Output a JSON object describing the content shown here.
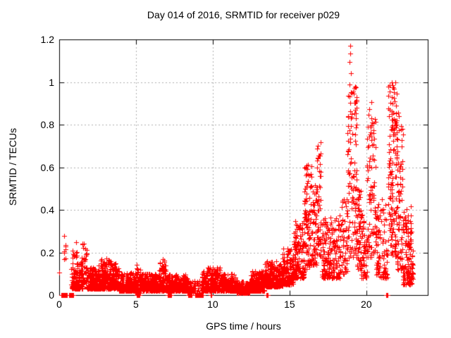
{
  "figure": {
    "title": "Day 014 of 2016, SRMTID for receiver p029",
    "xlabel": "GPS time / hours",
    "ylabel": "SRMTID / TECUs"
  },
  "chart_data": {
    "type": "scatter",
    "title": "Day 014 of 2016, SRMTID for receiver p029",
    "xlabel": "GPS time / hours",
    "ylabel": "SRMTID / TECUs",
    "xlim": [
      0,
      24
    ],
    "ylim": [
      0,
      1.2
    ],
    "xticks": {
      "values": [
        0,
        5,
        10,
        15,
        20
      ],
      "labels": [
        "0",
        "5",
        "10",
        "15",
        "20"
      ]
    },
    "yticks": {
      "values": [
        0,
        0.2,
        0.4,
        0.6,
        0.8,
        1.0,
        1.2
      ],
      "labels": [
        "0",
        "0.2",
        "0.4",
        "0.6",
        "0.8",
        "1",
        "1.2"
      ]
    },
    "grid": true,
    "grid_x": [
      5,
      10,
      15,
      20
    ],
    "grid_y": [
      0.2,
      0.4,
      0.6,
      0.8,
      1.0
    ],
    "legend": false,
    "colors": {
      "marker": "#ff0000",
      "grid": "#b0b0b0",
      "border": "#000000",
      "text": "#000000",
      "background": "#ffffff"
    },
    "series": [
      {
        "name": "SRMTID",
        "marker": "plus",
        "marker_size": 7
      }
    ],
    "seed": 20160114,
    "max_value": 1.17,
    "max_value_time": 18.93,
    "bands": [
      {
        "x0": 0.28,
        "x1": 0.48,
        "ymin": 0.16,
        "ymax": 0.28,
        "n": 8,
        "p": 1.0
      },
      {
        "x0": 0.82,
        "x1": 1.25,
        "ymin": 0.13,
        "ymax": 0.25,
        "n": 12,
        "p": 1.0
      },
      {
        "x0": 0.78,
        "x1": 1.55,
        "ymin": 0.03,
        "ymax": 0.15,
        "n": 130,
        "p": 2.0
      },
      {
        "x0": 1.42,
        "x1": 1.8,
        "ymin": 0.05,
        "ymax": 0.245,
        "n": 45,
        "p": 1.6
      },
      {
        "x0": 1.8,
        "x1": 2.6,
        "ymin": 0.03,
        "ymax": 0.13,
        "n": 170,
        "p": 2.0
      },
      {
        "x0": 2.58,
        "x1": 3.35,
        "ymin": 0.03,
        "ymax": 0.175,
        "n": 170,
        "p": 2.0
      },
      {
        "x0": 3.35,
        "x1": 3.9,
        "ymin": 0.03,
        "ymax": 0.15,
        "n": 115,
        "p": 2.0
      },
      {
        "x0": 3.9,
        "x1": 4.95,
        "ymin": 0.02,
        "ymax": 0.105,
        "n": 220,
        "p": 2.0
      },
      {
        "x0": 4.95,
        "x1": 5.3,
        "ymin": 0.01,
        "ymax": 0.155,
        "n": 70,
        "p": 2.2
      },
      {
        "x0": 5.3,
        "x1": 6.5,
        "ymin": 0.02,
        "ymax": 0.1,
        "n": 240,
        "p": 2.0
      },
      {
        "x0": 6.5,
        "x1": 6.95,
        "ymin": 0.02,
        "ymax": 0.17,
        "n": 95,
        "p": 2.0
      },
      {
        "x0": 6.95,
        "x1": 8.35,
        "ymin": 0.02,
        "ymax": 0.1,
        "n": 270,
        "p": 2.0
      },
      {
        "x0": 8.35,
        "x1": 9.3,
        "ymin": 0.01,
        "ymax": 0.07,
        "n": 70,
        "p": 2.0
      },
      {
        "x0": 9.3,
        "x1": 10.55,
        "ymin": 0.02,
        "ymax": 0.13,
        "n": 260,
        "p": 2.0
      },
      {
        "x0": 10.55,
        "x1": 11.55,
        "ymin": 0.02,
        "ymax": 0.1,
        "n": 210,
        "p": 2.0
      },
      {
        "x0": 11.55,
        "x1": 12.45,
        "ymin": 0.01,
        "ymax": 0.065,
        "n": 190,
        "p": 2.0
      },
      {
        "x0": 12.45,
        "x1": 13.35,
        "ymin": 0.02,
        "ymax": 0.12,
        "n": 200,
        "p": 2.0
      },
      {
        "x0": 13.35,
        "x1": 14.55,
        "ymin": 0.04,
        "ymax": 0.16,
        "n": 250,
        "p": 2.0
      },
      {
        "x0": 14.55,
        "x1": 15.25,
        "ymin": 0.05,
        "ymax": 0.22,
        "n": 150,
        "p": 2.0
      },
      {
        "x0": 15.25,
        "x1": 15.95,
        "ymin": 0.08,
        "ymax": 0.35,
        "n": 135,
        "p": 1.8
      },
      {
        "x0": 15.95,
        "x1": 16.45,
        "ymin": 0.12,
        "ymax": 0.62,
        "n": 95,
        "p": 1.4
      },
      {
        "x0": 16.45,
        "x1": 16.78,
        "ymin": 0.14,
        "ymax": 0.52,
        "n": 60,
        "p": 1.4
      },
      {
        "x0": 16.78,
        "x1": 17.05,
        "ymin": 0.18,
        "ymax": 0.72,
        "n": 55,
        "p": 1.3
      },
      {
        "x0": 17.1,
        "x1": 17.6,
        "ymin": 0.08,
        "ymax": 0.36,
        "n": 90,
        "p": 1.7
      },
      {
        "x0": 17.6,
        "x1": 18.3,
        "ymin": 0.08,
        "ymax": 0.38,
        "n": 100,
        "p": 1.7
      },
      {
        "x0": 18.3,
        "x1": 18.78,
        "ymin": 0.1,
        "ymax": 0.45,
        "n": 55,
        "p": 1.5
      },
      {
        "x0": 18.78,
        "x1": 19.38,
        "ymin": 0.17,
        "ymax": 1.0,
        "n": 115,
        "p": 1.2
      },
      {
        "x0": 19.38,
        "x1": 19.65,
        "ymin": 0.12,
        "ymax": 0.5,
        "n": 45,
        "p": 1.4
      },
      {
        "x0": 19.65,
        "x1": 20.05,
        "ymin": 0.08,
        "ymax": 0.42,
        "n": 55,
        "p": 1.6
      },
      {
        "x0": 20.05,
        "x1": 20.62,
        "ymin": 0.17,
        "ymax": 0.88,
        "n": 95,
        "p": 1.2
      },
      {
        "x0": 20.62,
        "x1": 21.4,
        "ymin": 0.08,
        "ymax": 0.45,
        "n": 95,
        "p": 1.7
      },
      {
        "x0": 21.42,
        "x1": 21.98,
        "ymin": 0.18,
        "ymax": 1.0,
        "n": 135,
        "p": 1.3
      },
      {
        "x0": 21.98,
        "x1": 22.38,
        "ymin": 0.12,
        "ymax": 0.8,
        "n": 80,
        "p": 1.5
      },
      {
        "x0": 22.38,
        "x1": 23.05,
        "ymin": 0.05,
        "ymax": 0.42,
        "n": 135,
        "p": 1.9
      }
    ],
    "zero_runs": [
      {
        "x0": 0.1,
        "x1": 0.5,
        "n": 45
      },
      {
        "x0": 0.62,
        "x1": 0.92,
        "n": 32
      },
      {
        "x0": 5.05,
        "x1": 5.25,
        "n": 7
      },
      {
        "x0": 7.08,
        "x1": 7.32,
        "n": 26
      },
      {
        "x0": 8.38,
        "x1": 8.62,
        "n": 26
      },
      {
        "x0": 8.85,
        "x1": 9.35,
        "n": 45
      },
      {
        "x0": 9.85,
        "x1": 9.95,
        "n": 4
      },
      {
        "x0": 13.45,
        "x1": 13.6,
        "n": 5
      },
      {
        "x0": 21.27,
        "x1": 21.4,
        "n": 5
      }
    ],
    "highlight_points": [
      [
        0.02,
        0.105
      ],
      [
        18.9,
        1.095
      ],
      [
        18.93,
        1.17
      ],
      [
        18.96,
        1.135
      ],
      [
        18.99,
        1.04
      ],
      [
        19.04,
        0.95
      ],
      [
        20.33,
        0.905
      ],
      [
        21.64,
        0.93
      ],
      [
        21.68,
        1.0
      ],
      [
        21.72,
        0.985
      ],
      [
        22.07,
        0.855
      ],
      [
        22.12,
        0.84
      ]
    ]
  }
}
